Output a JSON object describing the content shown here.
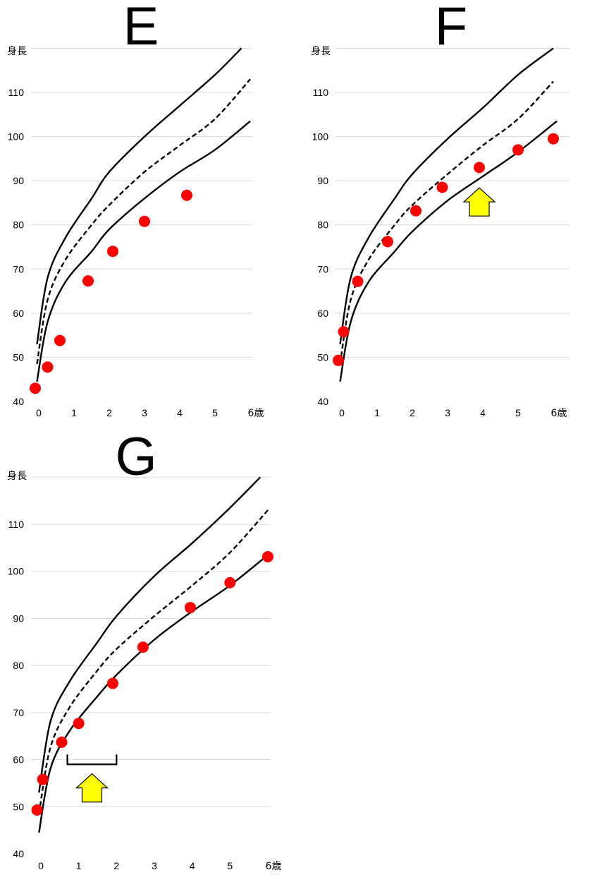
{
  "chart_data": [
    {
      "type": "scatter",
      "title": "E",
      "ylabel": "身長",
      "xlabel": "歳",
      "x_ticks": [
        "0",
        "1",
        "2",
        "3",
        "4",
        "5",
        "6歳"
      ],
      "y_ticks": [
        "40",
        "50",
        "60",
        "70",
        "80",
        "90",
        "100",
        "110"
      ],
      "ylim": [
        40,
        120
      ],
      "xlim": [
        0,
        6
      ],
      "grid": true,
      "reference_curves": {
        "upper": [
          [
            -0.05,
            53
          ],
          [
            0.25,
            68
          ],
          [
            0.75,
            77
          ],
          [
            1.5,
            86
          ],
          [
            2,
            92
          ],
          [
            3,
            100
          ],
          [
            4,
            107
          ],
          [
            5,
            114
          ],
          [
            5.75,
            120
          ]
        ],
        "middle": [
          [
            -0.05,
            48.5
          ],
          [
            0.25,
            63
          ],
          [
            0.75,
            72
          ],
          [
            1.5,
            80
          ],
          [
            2,
            84.5
          ],
          [
            3,
            92
          ],
          [
            4,
            98
          ],
          [
            5,
            104
          ],
          [
            6,
            113
          ]
        ],
        "lower": [
          [
            -0.05,
            44.5
          ],
          [
            0.25,
            58
          ],
          [
            0.75,
            67
          ],
          [
            1.5,
            74
          ],
          [
            2,
            79
          ],
          [
            3,
            86
          ],
          [
            4,
            92
          ],
          [
            5,
            97
          ],
          [
            6,
            103.5
          ]
        ]
      },
      "series": [
        {
          "values": [
            [
              -0.1,
              43
            ],
            [
              0.25,
              47.8
            ],
            [
              0.6,
              53.8
            ],
            [
              1.4,
              67.3
            ],
            [
              2.1,
              74
            ],
            [
              3.0,
              80.8
            ],
            [
              4.2,
              86.7
            ]
          ]
        }
      ]
    },
    {
      "type": "scatter",
      "title": "F",
      "ylabel": "身長",
      "xlabel": "歳",
      "x_ticks": [
        "0",
        "1",
        "2",
        "3",
        "4",
        "5",
        "6歳"
      ],
      "y_ticks": [
        "40",
        "50",
        "60",
        "70",
        "80",
        "90",
        "100",
        "110"
      ],
      "ylim": [
        40,
        120
      ],
      "xlim": [
        0,
        6
      ],
      "grid": true,
      "reference_curves": {
        "upper": [
          [
            -0.05,
            53
          ],
          [
            0.25,
            68
          ],
          [
            0.75,
            77
          ],
          [
            1.5,
            86
          ],
          [
            2,
            91.5
          ],
          [
            3,
            99.5
          ],
          [
            4,
            106.5
          ],
          [
            5,
            114
          ],
          [
            6,
            120
          ]
        ],
        "middle": [
          [
            -0.05,
            48.5
          ],
          [
            0.25,
            63
          ],
          [
            0.75,
            72
          ],
          [
            1.5,
            80
          ],
          [
            2,
            84.5
          ],
          [
            3,
            91.5
          ],
          [
            4,
            98
          ],
          [
            5,
            104
          ],
          [
            6,
            112.5
          ]
        ],
        "lower": [
          [
            -0.05,
            44.5
          ],
          [
            0.25,
            58
          ],
          [
            0.75,
            67
          ],
          [
            1.5,
            74
          ],
          [
            2,
            78.5
          ],
          [
            3,
            85.5
          ],
          [
            4,
            91
          ],
          [
            5,
            96.5
          ],
          [
            6.1,
            103.5
          ]
        ]
      },
      "series": [
        {
          "values": [
            [
              -0.1,
              49.3
            ],
            [
              0.05,
              55.8
            ],
            [
              0.45,
              67.2
            ],
            [
              1.3,
              76.2
            ],
            [
              2.1,
              83.2
            ],
            [
              2.85,
              88.5
            ],
            [
              3.9,
              93
            ],
            [
              5.0,
              97
            ],
            [
              6.0,
              99.5
            ]
          ]
        }
      ],
      "annotations": [
        {
          "type": "arrow-up",
          "at": [
            3.9,
            82
          ],
          "color": "#ffff00"
        }
      ]
    },
    {
      "type": "scatter",
      "title": "G",
      "ylabel": "身長",
      "xlabel": "歳",
      "x_ticks": [
        "0",
        "1",
        "2",
        "3",
        "4",
        "5",
        "6歳"
      ],
      "y_ticks": [
        "40",
        "50",
        "60",
        "70",
        "80",
        "90",
        "100",
        "110"
      ],
      "ylim": [
        40,
        120
      ],
      "xlim": [
        0,
        6
      ],
      "grid": true,
      "reference_curves": {
        "upper": [
          [
            -0.05,
            53
          ],
          [
            0.25,
            68
          ],
          [
            0.75,
            76.5
          ],
          [
            1.5,
            85
          ],
          [
            2,
            90.5
          ],
          [
            3,
            99
          ],
          [
            4,
            106
          ],
          [
            5,
            113.5
          ],
          [
            5.8,
            120
          ]
        ],
        "middle": [
          [
            -0.05,
            48.5
          ],
          [
            0.25,
            62.5
          ],
          [
            0.75,
            71
          ],
          [
            1.5,
            79
          ],
          [
            2,
            83.5
          ],
          [
            3,
            90.5
          ],
          [
            4,
            97
          ],
          [
            5,
            104
          ],
          [
            6,
            113
          ]
        ],
        "lower": [
          [
            -0.05,
            44.5
          ],
          [
            0.25,
            58
          ],
          [
            0.75,
            66
          ],
          [
            1.5,
            73.5
          ],
          [
            2,
            78
          ],
          [
            3,
            85.5
          ],
          [
            4,
            91.5
          ],
          [
            5,
            97
          ],
          [
            6,
            103.5
          ]
        ]
      },
      "series": [
        {
          "values": [
            [
              -0.1,
              49.3
            ],
            [
              0.05,
              55.8
            ],
            [
              0.55,
              63.7
            ],
            [
              1.0,
              67.7
            ],
            [
              1.9,
              76.2
            ],
            [
              2.7,
              83.9
            ],
            [
              3.95,
              92.3
            ],
            [
              5.0,
              97.6
            ],
            [
              6.0,
              103.1
            ]
          ]
        }
      ],
      "annotations": [
        {
          "type": "bracket",
          "x_range": [
            0.7,
            2.0
          ],
          "y": 59
        },
        {
          "type": "arrow-up",
          "at": [
            1.35,
            51
          ],
          "color": "#ffff00"
        }
      ]
    }
  ]
}
